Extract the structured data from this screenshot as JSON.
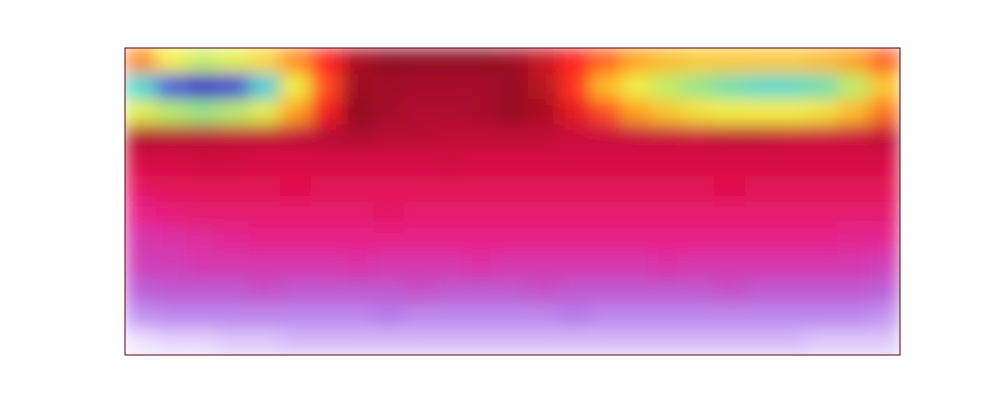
{
  "chart_data": {
    "type": "heatmap",
    "tick_labels": false,
    "values": [
      [
        3.7,
        3.0,
        2.5,
        2.8,
        3.2,
        3.7,
        4.2,
        4.8,
        5.0,
        5.0,
        5.0,
        5.0,
        4.9,
        4.6,
        4.2,
        3.9,
        3.6,
        3.4,
        3.3,
        3.3,
        3.3,
        3.3,
        3.4,
        3.6,
        3.9
      ],
      [
        1.5,
        0.5,
        0.0,
        0.3,
        1.4,
        2.9,
        4.0,
        4.9,
        5.2,
        5.3,
        5.3,
        5.3,
        5.1,
        4.7,
        4.1,
        3.4,
        2.9,
        2.4,
        2.1,
        1.8,
        1.6,
        1.6,
        1.8,
        2.4,
        3.3
      ],
      [
        2.8,
        2.4,
        2.2,
        2.4,
        2.8,
        3.6,
        4.3,
        5.0,
        5.3,
        5.4,
        5.4,
        5.3,
        5.1,
        4.8,
        4.4,
        4.0,
        3.6,
        3.3,
        3.1,
        3.0,
        3.0,
        3.0,
        3.1,
        3.4,
        3.8
      ],
      [
        5.4,
        5.5,
        5.5,
        5.6,
        5.6,
        5.6,
        5.5,
        5.4,
        5.5,
        5.5,
        5.6,
        5.6,
        5.6,
        5.6,
        5.7,
        5.7,
        5.7,
        5.7,
        5.7,
        5.6,
        5.6,
        5.7,
        5.7,
        5.7,
        5.6
      ],
      [
        5.9,
        5.9,
        5.8,
        5.8,
        5.9,
        5.9,
        5.9,
        5.9,
        5.9,
        5.9,
        5.8,
        5.9,
        5.9,
        5.9,
        5.9,
        5.9,
        5.9,
        5.9,
        5.9,
        5.9,
        5.9,
        5.9,
        5.9,
        5.9,
        5.9
      ],
      [
        6.2,
        6.1,
        6.1,
        6.1,
        6.1,
        6.0,
        6.1,
        6.1,
        6.1,
        6.1,
        6.1,
        6.1,
        6.1,
        6.1,
        6.1,
        6.1,
        6.1,
        6.1,
        6.1,
        6.0,
        6.1,
        6.1,
        6.1,
        6.1,
        6.1
      ],
      [
        6.5,
        6.4,
        6.3,
        6.3,
        6.3,
        6.3,
        6.3,
        6.3,
        6.2,
        6.3,
        6.3,
        6.3,
        6.3,
        6.3,
        6.3,
        6.3,
        6.3,
        6.3,
        6.3,
        6.3,
        6.3,
        6.3,
        6.3,
        6.3,
        6.3
      ],
      [
        6.9,
        6.8,
        6.7,
        6.6,
        6.5,
        6.5,
        6.5,
        6.5,
        6.5,
        6.5,
        6.5,
        6.5,
        6.5,
        6.5,
        6.5,
        6.5,
        6.5,
        6.5,
        6.5,
        6.5,
        6.5,
        6.5,
        6.5,
        6.6,
        6.6
      ],
      [
        7.0,
        7.0,
        6.9,
        6.9,
        6.9,
        6.9,
        6.9,
        6.8,
        6.9,
        6.9,
        6.9,
        6.8,
        6.9,
        6.9,
        6.9,
        6.9,
        6.9,
        6.8,
        6.9,
        6.9,
        6.9,
        6.9,
        6.9,
        6.9,
        7.0
      ],
      [
        7.4,
        7.3,
        7.3,
        7.3,
        7.2,
        7.3,
        7.3,
        7.3,
        7.3,
        7.2,
        7.3,
        7.3,
        7.3,
        7.2,
        7.3,
        7.3,
        7.3,
        7.3,
        7.3,
        7.2,
        7.3,
        7.3,
        7.3,
        7.3,
        7.4
      ],
      [
        7.9,
        7.8,
        7.8,
        7.8,
        7.8,
        7.8,
        7.8,
        7.8,
        7.7,
        7.8,
        7.8,
        7.8,
        7.8,
        7.8,
        7.7,
        7.8,
        7.8,
        7.8,
        7.8,
        7.8,
        7.8,
        7.8,
        7.8,
        7.8,
        7.9
      ],
      [
        8.5,
        8.4,
        8.4,
        8.3,
        8.3,
        8.2,
        8.2,
        8.2,
        8.2,
        8.2,
        8.2,
        8.2,
        8.2,
        8.2,
        8.2,
        8.2,
        8.2,
        8.2,
        8.2,
        8.2,
        8.2,
        8.2,
        8.3,
        8.3,
        8.3
      ]
    ]
  }
}
